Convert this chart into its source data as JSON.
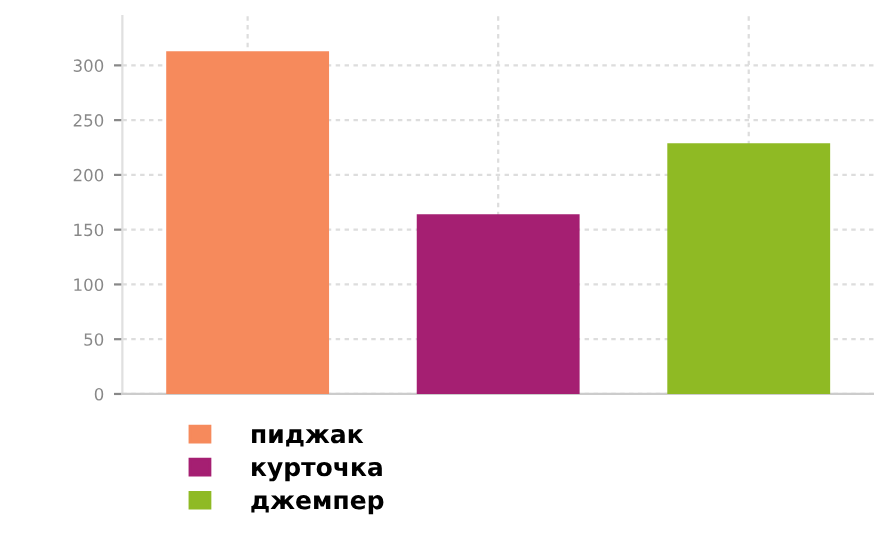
{
  "chart_data": {
    "type": "bar",
    "categories": [
      null,
      null,
      null
    ],
    "series": [
      {
        "name": "пиджак",
        "color": "#f68a5c",
        "values": [
          313,
          null,
          null
        ]
      },
      {
        "name": "курточка",
        "color": "#a51f72",
        "values": [
          null,
          164,
          null
        ]
      },
      {
        "name": "джемпер",
        "color": "#8fba24",
        "values": [
          null,
          null,
          229
        ]
      }
    ],
    "ylim": [
      0,
      345
    ],
    "yticks": [
      0,
      50,
      100,
      150,
      200,
      250,
      300
    ],
    "grid": true,
    "legend": "bottom"
  }
}
